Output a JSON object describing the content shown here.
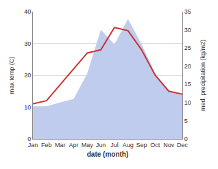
{
  "chart_data": {
    "type": "line",
    "categories": [
      "Jan",
      "Feb",
      "Mar",
      "Apr",
      "May",
      "Jun",
      "Jul",
      "Aug",
      "Sep",
      "Oct",
      "Nov",
      "Dec"
    ],
    "xlabel": "date (month)",
    "ylabel": "max temp (C)",
    "y2label": "med. precipitation (kg/m2)",
    "series": [
      {
        "type": "area",
        "color": "#c0ccee",
        "axis": "y2",
        "values": [
          9,
          9,
          10,
          11,
          18,
          30,
          26,
          33,
          26,
          18,
          13,
          12
        ]
      },
      {
        "type": "line",
        "color": "#cc3333",
        "values": [
          11,
          12,
          17,
          22,
          27,
          28,
          35,
          34,
          28,
          20,
          15,
          14
        ]
      }
    ],
    "ylim": [
      0,
      40
    ],
    "yticks": [
      0,
      10,
      20,
      30,
      40
    ],
    "y2lim": [
      0,
      35
    ],
    "y2ticks": [
      0,
      5,
      10,
      15,
      20,
      25,
      30,
      35
    ],
    "grid": true
  }
}
